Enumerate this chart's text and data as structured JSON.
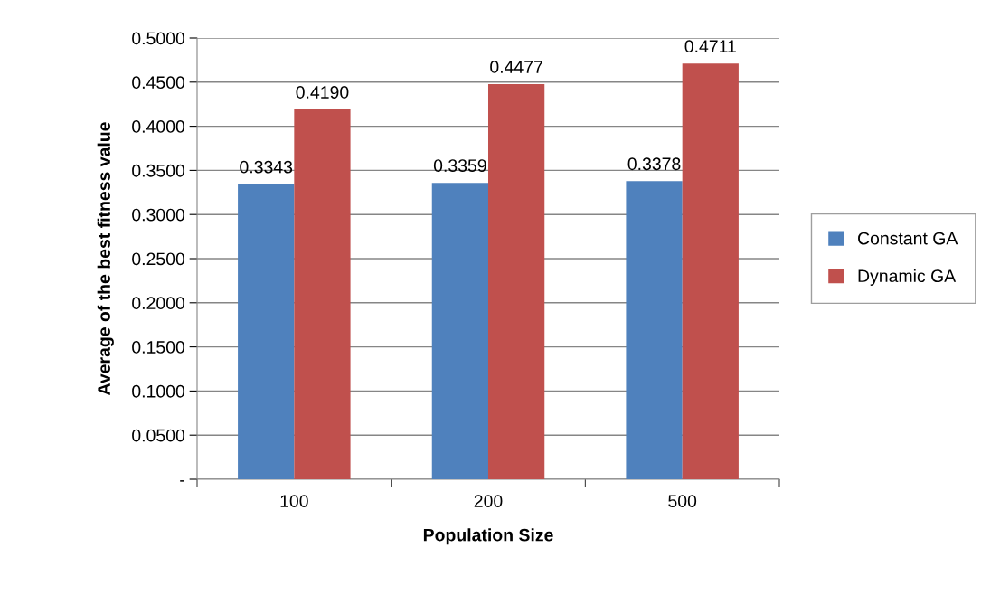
{
  "chart_data": {
    "type": "bar",
    "xlabel": "Population Size",
    "ylabel": "Average of the best fitness value",
    "categories": [
      "100",
      "200",
      "500"
    ],
    "series": [
      {
        "name": "Constant GA",
        "color": "#4f81bd",
        "values": [
          0.3343,
          0.3359,
          0.3378
        ],
        "value_labels": [
          "0.3343",
          "0.3359",
          "0.3378"
        ]
      },
      {
        "name": "Dynamic GA",
        "color": "#c0504d",
        "values": [
          0.419,
          0.4477,
          0.4711
        ],
        "value_labels": [
          "0.4190",
          "0.4477",
          "0.4711"
        ]
      }
    ],
    "ylim": [
      0,
      0.5
    ],
    "yticks": [
      {
        "value": 0,
        "label": "-"
      },
      {
        "value": 0.05,
        "label": "0.0500"
      },
      {
        "value": 0.1,
        "label": "0.1000"
      },
      {
        "value": 0.15,
        "label": "0.1500"
      },
      {
        "value": 0.2,
        "label": "0.2000"
      },
      {
        "value": 0.25,
        "label": "0.2500"
      },
      {
        "value": 0.3,
        "label": "0.3000"
      },
      {
        "value": 0.35,
        "label": "0.3500"
      },
      {
        "value": 0.4,
        "label": "0.4000"
      },
      {
        "value": 0.45,
        "label": "0.4500"
      },
      {
        "value": 0.5,
        "label": "0.5000"
      }
    ],
    "grid": "y",
    "legend": "right"
  }
}
